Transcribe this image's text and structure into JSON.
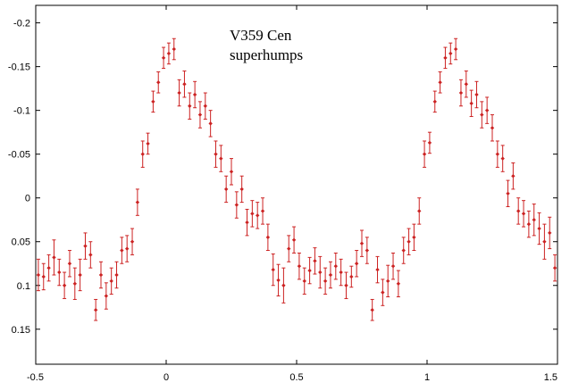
{
  "chart_data": {
    "type": "scatter",
    "annotation": [
      "V359 Cen",
      "superhumps"
    ],
    "xlim": [
      -0.5,
      1.5
    ],
    "ylim": [
      -0.22,
      0.19
    ],
    "y_inverted": true,
    "grid": false,
    "x_ticks": [
      -0.5,
      0,
      0.5,
      1,
      1.5
    ],
    "x_tick_labels": [
      "-0.5",
      "0",
      "0.5",
      "1",
      "1.5"
    ],
    "y_ticks": [
      -0.2,
      -0.15,
      -0.1,
      -0.05,
      0,
      0.05,
      0.1,
      0.15
    ],
    "y_tick_labels": [
      "-0.2",
      "-0.15",
      "-0.1",
      "-0.05",
      "0",
      "0.05",
      "0.1",
      "0.15"
    ],
    "marker_color": "#cc2222",
    "series": [
      {
        "x": [
          -0.49,
          -0.47,
          -0.45,
          -0.43,
          -0.41,
          -0.39,
          -0.37,
          -0.35,
          -0.33,
          -0.31,
          -0.29,
          -0.27,
          -0.25,
          -0.23,
          -0.21,
          -0.19,
          -0.17,
          -0.15,
          -0.13,
          -0.11,
          -0.09,
          -0.07,
          -0.05,
          -0.03,
          -0.01,
          0.01,
          0.03,
          0.05,
          0.07,
          0.09,
          0.11,
          0.13,
          0.15,
          0.17,
          0.19,
          0.21,
          0.23,
          0.25,
          0.27,
          0.29,
          0.31,
          0.33,
          0.35,
          0.37,
          0.39,
          0.41,
          0.43,
          0.45,
          0.47,
          0.49,
          0.51,
          0.53,
          0.55,
          0.57,
          0.59,
          0.61,
          0.63,
          0.65,
          0.67,
          0.69,
          0.71,
          0.73,
          0.75,
          0.77,
          0.79,
          0.81,
          0.83,
          0.85,
          0.87,
          0.89,
          0.91,
          0.93,
          0.95,
          0.97,
          0.99,
          1.01,
          1.03,
          1.05,
          1.07,
          1.09,
          1.11,
          1.13,
          1.15,
          1.17,
          1.19,
          1.21,
          1.23,
          1.25,
          1.27,
          1.29,
          1.31,
          1.33,
          1.35,
          1.37,
          1.39,
          1.41,
          1.43,
          1.45,
          1.47,
          1.49
        ],
        "y": [
          0.088,
          0.09,
          0.08,
          0.068,
          0.085,
          0.1,
          0.075,
          0.098,
          0.088,
          0.055,
          0.065,
          0.128,
          0.088,
          0.112,
          0.095,
          0.088,
          0.06,
          0.058,
          0.05,
          0.005,
          -0.05,
          -0.062,
          -0.11,
          -0.132,
          -0.16,
          -0.165,
          -0.17,
          -0.12,
          -0.13,
          -0.105,
          -0.118,
          -0.095,
          -0.105,
          -0.085,
          -0.05,
          -0.045,
          -0.01,
          -0.03,
          0.008,
          -0.01,
          0.028,
          0.018,
          0.02,
          0.015,
          0.045,
          0.082,
          0.094,
          0.1,
          0.058,
          0.048,
          0.078,
          0.095,
          0.083,
          0.072,
          0.085,
          0.095,
          0.088,
          0.078,
          0.085,
          0.1,
          0.09,
          0.075,
          0.052,
          0.06,
          0.128,
          0.082,
          0.108,
          0.095,
          0.078,
          0.098,
          0.06,
          0.05,
          0.045,
          0.015,
          -0.05,
          -0.063,
          -0.11,
          -0.132,
          -0.16,
          -0.165,
          -0.17,
          -0.12,
          -0.13,
          -0.108,
          -0.118,
          -0.095,
          -0.1,
          -0.08,
          -0.05,
          -0.045,
          -0.005,
          -0.025,
          0.015,
          0.018,
          0.03,
          0.025,
          0.035,
          0.05,
          0.04,
          0.08
        ],
        "yerr": [
          0.018,
          0.015,
          0.015,
          0.02,
          0.015,
          0.015,
          0.015,
          0.018,
          0.018,
          0.015,
          0.015,
          0.012,
          0.015,
          0.015,
          0.015,
          0.015,
          0.015,
          0.015,
          0.015,
          0.015,
          0.015,
          0.012,
          0.012,
          0.012,
          0.012,
          0.012,
          0.012,
          0.015,
          0.015,
          0.015,
          0.015,
          0.015,
          0.015,
          0.015,
          0.015,
          0.015,
          0.015,
          0.015,
          0.015,
          0.015,
          0.015,
          0.015,
          0.015,
          0.015,
          0.015,
          0.018,
          0.018,
          0.02,
          0.015,
          0.015,
          0.015,
          0.015,
          0.015,
          0.015,
          0.018,
          0.015,
          0.015,
          0.015,
          0.015,
          0.015,
          0.012,
          0.015,
          0.015,
          0.015,
          0.012,
          0.015,
          0.015,
          0.018,
          0.015,
          0.015,
          0.015,
          0.015,
          0.015,
          0.015,
          0.015,
          0.012,
          0.012,
          0.012,
          0.012,
          0.012,
          0.012,
          0.015,
          0.015,
          0.015,
          0.015,
          0.015,
          0.015,
          0.015,
          0.015,
          0.015,
          0.015,
          0.015,
          0.015,
          0.015,
          0.015,
          0.018,
          0.018,
          0.02,
          0.018,
          0.015
        ]
      }
    ]
  }
}
